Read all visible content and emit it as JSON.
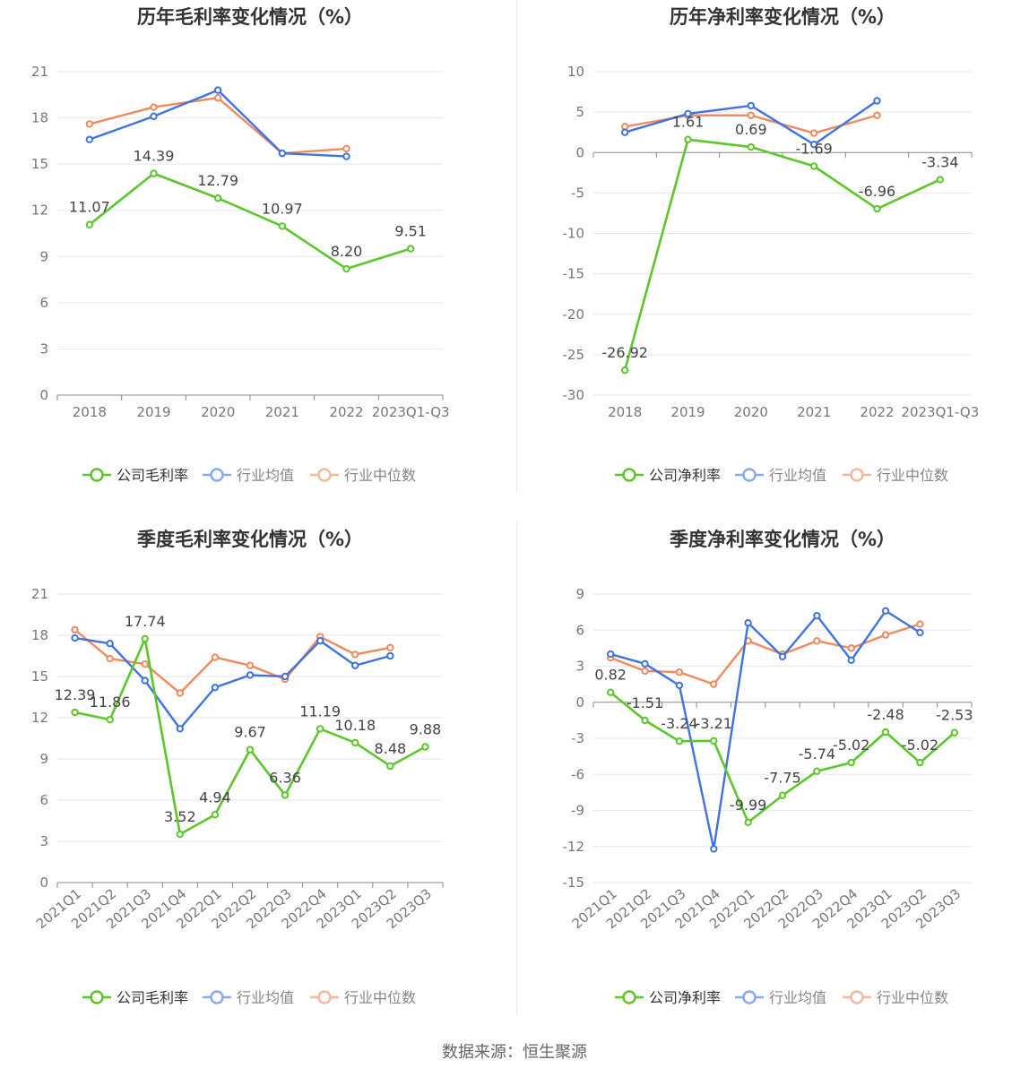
{
  "colors": {
    "company": "#5cc72a",
    "avg": "#3f73e0",
    "median": "#f08a5d"
  },
  "source": "数据来源：恒生聚源",
  "chart_data": [
    {
      "type": "line",
      "title": "历年毛利率变化情况（%）",
      "categories": [
        "2018",
        "2019",
        "2020",
        "2021",
        "2022",
        "2023Q1-Q3"
      ],
      "yticks": [
        0,
        3,
        6,
        9,
        12,
        15,
        18,
        21
      ],
      "ylim": [
        0,
        21
      ],
      "legend": "bottom",
      "grid": true,
      "series": [
        {
          "name": "公司毛利率",
          "key": "company",
          "values": [
            11.07,
            14.39,
            12.79,
            10.97,
            8.2,
            9.51
          ],
          "labels": [
            "11.07",
            "14.39",
            "12.79",
            "10.97",
            "8.20",
            "9.51"
          ]
        },
        {
          "name": "行业均值",
          "key": "avg",
          "values": [
            16.6,
            18.1,
            19.8,
            15.7,
            15.5,
            null
          ]
        },
        {
          "name": "行业中位数",
          "key": "median",
          "values": [
            17.6,
            18.7,
            19.3,
            15.7,
            16.0,
            null
          ]
        }
      ]
    },
    {
      "type": "line",
      "title": "历年净利率变化情况（%）",
      "categories": [
        "2018",
        "2019",
        "2020",
        "2021",
        "2022",
        "2023Q1-Q3"
      ],
      "yticks": [
        -30,
        -25,
        -20,
        -15,
        -10,
        -5,
        0,
        5,
        10
      ],
      "ylim": [
        -30,
        10
      ],
      "legend": "bottom",
      "grid": true,
      "series": [
        {
          "name": "公司净利率",
          "key": "company",
          "values": [
            -26.92,
            1.61,
            0.69,
            -1.69,
            -6.96,
            -3.34
          ],
          "labels": [
            "-26.92",
            "1.61",
            "0.69",
            "-1.69",
            "-6.96",
            "-3.34"
          ]
        },
        {
          "name": "行业均值",
          "key": "avg",
          "values": [
            2.5,
            4.8,
            5.8,
            1.0,
            6.4,
            null
          ]
        },
        {
          "name": "行业中位数",
          "key": "median",
          "values": [
            3.2,
            4.6,
            4.6,
            2.4,
            4.6,
            null
          ]
        }
      ]
    },
    {
      "type": "line",
      "title": "季度毛利率变化情况（%）",
      "categories": [
        "2021Q1",
        "2021Q2",
        "2021Q3",
        "2021Q4",
        "2022Q1",
        "2022Q2",
        "2022Q3",
        "2022Q4",
        "2023Q1",
        "2023Q2",
        "2023Q3"
      ],
      "yticks": [
        0,
        3,
        6,
        9,
        12,
        15,
        18,
        21
      ],
      "ylim": [
        0,
        21
      ],
      "legend": "bottom",
      "grid": true,
      "series": [
        {
          "name": "公司毛利率",
          "key": "company",
          "values": [
            12.39,
            11.86,
            17.74,
            3.52,
            4.94,
            9.67,
            6.36,
            11.19,
            10.18,
            8.48,
            9.88
          ],
          "labels": [
            "12.39",
            "11.86",
            "17.74",
            "3.52",
            "4.94",
            "9.67",
            "6.36",
            "11.19",
            "10.18",
            "8.48",
            "9.88"
          ]
        },
        {
          "name": "行业均值",
          "key": "avg",
          "values": [
            17.8,
            17.4,
            14.7,
            11.2,
            14.2,
            15.1,
            15.0,
            17.6,
            15.8,
            16.5,
            null
          ]
        },
        {
          "name": "行业中位数",
          "key": "median",
          "values": [
            18.4,
            16.3,
            15.9,
            13.8,
            16.4,
            15.8,
            14.8,
            17.9,
            16.6,
            17.1,
            null
          ]
        }
      ]
    },
    {
      "type": "line",
      "title": "季度净利率变化情况（%）",
      "categories": [
        "2021Q1",
        "2021Q2",
        "2021Q3",
        "2021Q4",
        "2022Q1",
        "2022Q2",
        "2022Q3",
        "2022Q4",
        "2023Q1",
        "2023Q2",
        "2023Q3"
      ],
      "yticks": [
        -15,
        -12,
        -9,
        -6,
        -3,
        0,
        3,
        6,
        9
      ],
      "ylim": [
        -15,
        9
      ],
      "legend": "bottom",
      "grid": true,
      "series": [
        {
          "name": "公司净利率",
          "key": "company",
          "values": [
            0.82,
            -1.51,
            -3.24,
            -3.21,
            -9.99,
            -7.75,
            -5.74,
            -5.02,
            -2.48,
            -5.02,
            -2.53
          ],
          "labels": [
            "0.82",
            "-1.51",
            "-3.24",
            "-3.21",
            "-9.99",
            "-7.75",
            "-5.74",
            "-5.02",
            "-2.48",
            "-5.02",
            "-2.53"
          ]
        },
        {
          "name": "行业均值",
          "key": "avg",
          "values": [
            4.0,
            3.2,
            1.4,
            -12.2,
            6.6,
            3.8,
            7.2,
            3.5,
            7.6,
            5.8,
            null
          ]
        },
        {
          "name": "行业中位数",
          "key": "median",
          "values": [
            3.7,
            2.6,
            2.5,
            1.5,
            5.1,
            4.0,
            5.1,
            4.5,
            5.6,
            6.5,
            null
          ]
        }
      ]
    }
  ]
}
